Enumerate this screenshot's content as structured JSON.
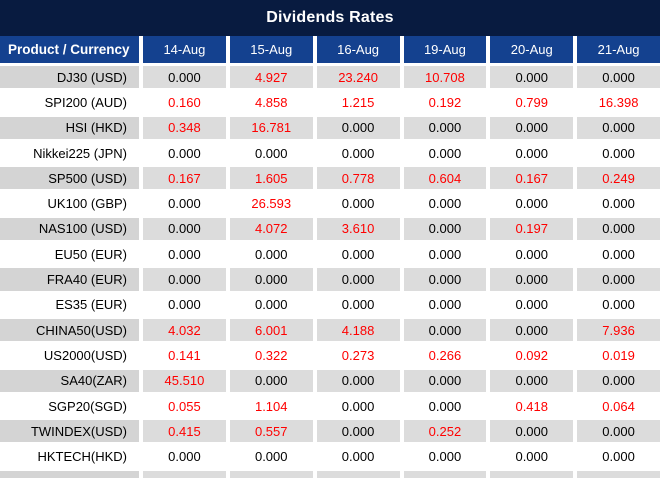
{
  "title": "Dividends Rates",
  "table": {
    "product_header": "Product / Currency",
    "dates": [
      "14-Aug",
      "15-Aug",
      "16-Aug",
      "19-Aug",
      "20-Aug",
      "21-Aug"
    ],
    "rows": [
      {
        "product": "DJ30 (USD)",
        "values": [
          "0.000",
          "4.927",
          "23.240",
          "10.708",
          "0.000",
          "0.000"
        ]
      },
      {
        "product": "SPI200 (AUD)",
        "values": [
          "0.160",
          "4.858",
          "1.215",
          "0.192",
          "0.799",
          "16.398"
        ]
      },
      {
        "product": "HSI (HKD)",
        "values": [
          "0.348",
          "16.781",
          "0.000",
          "0.000",
          "0.000",
          "0.000"
        ]
      },
      {
        "product": "Nikkei225 (JPN)",
        "values": [
          "0.000",
          "0.000",
          "0.000",
          "0.000",
          "0.000",
          "0.000"
        ]
      },
      {
        "product": "SP500 (USD)",
        "values": [
          "0.167",
          "1.605",
          "0.778",
          "0.604",
          "0.167",
          "0.249"
        ]
      },
      {
        "product": "UK100 (GBP)",
        "values": [
          "0.000",
          "26.593",
          "0.000",
          "0.000",
          "0.000",
          "0.000"
        ]
      },
      {
        "product": "NAS100 (USD)",
        "values": [
          "0.000",
          "4.072",
          "3.610",
          "0.000",
          "0.197",
          "0.000"
        ]
      },
      {
        "product": "EU50 (EUR)",
        "values": [
          "0.000",
          "0.000",
          "0.000",
          "0.000",
          "0.000",
          "0.000"
        ]
      },
      {
        "product": "FRA40 (EUR)",
        "values": [
          "0.000",
          "0.000",
          "0.000",
          "0.000",
          "0.000",
          "0.000"
        ]
      },
      {
        "product": "ES35 (EUR)",
        "values": [
          "0.000",
          "0.000",
          "0.000",
          "0.000",
          "0.000",
          "0.000"
        ]
      },
      {
        "product": "CHINA50(USD)",
        "values": [
          "4.032",
          "6.001",
          "4.188",
          "0.000",
          "0.000",
          "7.936"
        ]
      },
      {
        "product": "US2000(USD)",
        "values": [
          "0.141",
          "0.322",
          "0.273",
          "0.266",
          "0.092",
          "0.019"
        ]
      },
      {
        "product": "SA40(ZAR)",
        "values": [
          "45.510",
          "0.000",
          "0.000",
          "0.000",
          "0.000",
          "0.000"
        ]
      },
      {
        "product": "SGP20(SGD)",
        "values": [
          "0.055",
          "1.104",
          "0.000",
          "0.000",
          "0.418",
          "0.064"
        ]
      },
      {
        "product": "TWINDEX(USD)",
        "values": [
          "0.415",
          "0.557",
          "0.000",
          "0.252",
          "0.000",
          "0.000"
        ]
      },
      {
        "product": "HKTECH(HKD)",
        "values": [
          "0.000",
          "0.000",
          "0.000",
          "0.000",
          "0.000",
          "0.000"
        ]
      }
    ]
  },
  "colors": {
    "title_bar": "#081b40",
    "header_blue": "#14418f",
    "header_text": "#ffffff",
    "stripe_product_gray": "#d4d4d4",
    "stripe_value_gray": "#dcdcdc",
    "row_white": "#ffffff",
    "value_zero": "#000000",
    "value_nonzero_red": "#ff0000"
  },
  "chart_data": {
    "type": "table",
    "title": "Dividends Rates",
    "columns": [
      "Product / Currency",
      "14-Aug",
      "15-Aug",
      "16-Aug",
      "19-Aug",
      "20-Aug",
      "21-Aug"
    ],
    "rows": [
      [
        "DJ30 (USD)",
        0.0,
        4.927,
        23.24,
        10.708,
        0.0,
        0.0
      ],
      [
        "SPI200 (AUD)",
        0.16,
        4.858,
        1.215,
        0.192,
        0.799,
        16.398
      ],
      [
        "HSI (HKD)",
        0.348,
        16.781,
        0.0,
        0.0,
        0.0,
        0.0
      ],
      [
        "Nikkei225 (JPN)",
        0.0,
        0.0,
        0.0,
        0.0,
        0.0,
        0.0
      ],
      [
        "SP500 (USD)",
        0.167,
        1.605,
        0.778,
        0.604,
        0.167,
        0.249
      ],
      [
        "UK100 (GBP)",
        0.0,
        26.593,
        0.0,
        0.0,
        0.0,
        0.0
      ],
      [
        "NAS100 (USD)",
        0.0,
        4.072,
        3.61,
        0.0,
        0.197,
        0.0
      ],
      [
        "EU50 (EUR)",
        0.0,
        0.0,
        0.0,
        0.0,
        0.0,
        0.0
      ],
      [
        "FRA40 (EUR)",
        0.0,
        0.0,
        0.0,
        0.0,
        0.0,
        0.0
      ],
      [
        "ES35 (EUR)",
        0.0,
        0.0,
        0.0,
        0.0,
        0.0,
        0.0
      ],
      [
        "CHINA50(USD)",
        4.032,
        6.001,
        4.188,
        0.0,
        0.0,
        7.936
      ],
      [
        "US2000(USD)",
        0.141,
        0.322,
        0.273,
        0.266,
        0.092,
        0.019
      ],
      [
        "SA40(ZAR)",
        45.51,
        0.0,
        0.0,
        0.0,
        0.0,
        0.0
      ],
      [
        "SGP20(SGD)",
        0.055,
        1.104,
        0.0,
        0.0,
        0.418,
        0.064
      ],
      [
        "TWINDEX(USD)",
        0.415,
        0.557,
        0.0,
        0.252,
        0.0,
        0.0
      ],
      [
        "HKTECH(HKD)",
        0.0,
        0.0,
        0.0,
        0.0,
        0.0,
        0.0
      ]
    ],
    "notes": "Zero values rendered black; non-zero values rendered red. Odd rows (1st, 3rd, ...) have gray stripe background."
  }
}
